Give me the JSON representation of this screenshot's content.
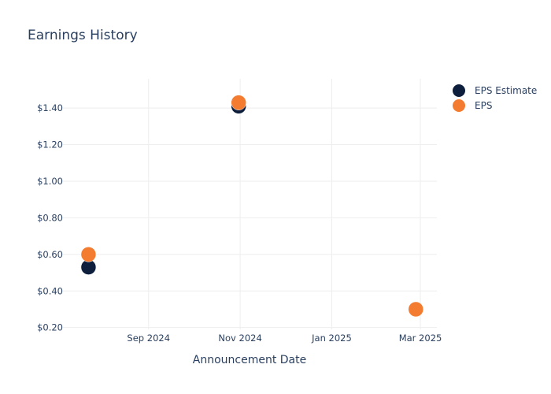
{
  "chart_data": {
    "type": "scatter",
    "title": "Earnings History",
    "xlabel": "Announcement Date",
    "ylabel": "",
    "x_ticks": [
      {
        "date": "2024-09-01",
        "label": "Sep 2024"
      },
      {
        "date": "2024-11-01",
        "label": "Nov 2024"
      },
      {
        "date": "2025-01-01",
        "label": "Jan 2025"
      },
      {
        "date": "2025-03-01",
        "label": "Mar 2025"
      }
    ],
    "xlim": [
      "2024-07-06",
      "2025-03-12"
    ],
    "y_ticks": [
      {
        "value": 0.2,
        "label": "$0.20"
      },
      {
        "value": 0.4,
        "label": "$0.40"
      },
      {
        "value": 0.6,
        "label": "$0.60"
      },
      {
        "value": 0.8,
        "label": "$0.80"
      },
      {
        "value": 1.0,
        "label": "$1.00"
      },
      {
        "value": 1.2,
        "label": "$1.20"
      },
      {
        "value": 1.4,
        "label": "$1.40"
      }
    ],
    "ylim": [
      0.19,
      1.56
    ],
    "grid": true,
    "legend_position": "top-right",
    "series": [
      {
        "name": "EPS Estimate",
        "color": "#0d1f3c",
        "points": [
          {
            "x": "2024-07-23",
            "y": 0.53
          },
          {
            "x": "2024-10-31",
            "y": 1.41
          },
          {
            "x": "2025-02-26",
            "y": 0.3
          }
        ]
      },
      {
        "name": "EPS",
        "color": "#f47c30",
        "points": [
          {
            "x": "2024-07-23",
            "y": 0.6
          },
          {
            "x": "2024-10-31",
            "y": 1.43
          },
          {
            "x": "2025-02-26",
            "y": 0.3
          }
        ]
      }
    ]
  }
}
